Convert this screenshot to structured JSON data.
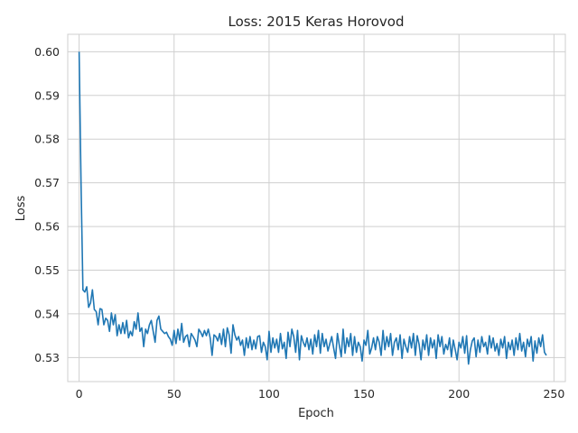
{
  "chart_data": {
    "type": "line",
    "title": "Loss: 2015 Keras Horovod",
    "xlabel": "Epoch",
    "ylabel": "Loss",
    "xlim": [
      -6,
      256
    ],
    "ylim": [
      0.5245,
      0.604
    ],
    "xticks": [
      0,
      50,
      100,
      150,
      200,
      250
    ],
    "yticks": [
      0.53,
      0.54,
      0.55,
      0.56,
      0.57,
      0.58,
      0.59,
      0.6
    ],
    "ytick_labels": [
      "0.53",
      "0.54",
      "0.55",
      "0.56",
      "0.57",
      "0.58",
      "0.59",
      "0.60"
    ],
    "grid": true,
    "legend": "none",
    "series": [
      {
        "color": "#1f77b4",
        "x_start": 0,
        "x_step": 1,
        "values": [
          0.6,
          0.57,
          0.5455,
          0.545,
          0.5462,
          0.5415,
          0.5425,
          0.5455,
          0.541,
          0.5405,
          0.5375,
          0.5412,
          0.541,
          0.5375,
          0.539,
          0.5385,
          0.536,
          0.5402,
          0.5375,
          0.5398,
          0.535,
          0.5375,
          0.5355,
          0.538,
          0.5355,
          0.5385,
          0.5345,
          0.536,
          0.535,
          0.5382,
          0.5365,
          0.5402,
          0.536,
          0.5368,
          0.5325,
          0.5365,
          0.5355,
          0.5375,
          0.5385,
          0.536,
          0.5335,
          0.5385,
          0.5395,
          0.5365,
          0.536,
          0.5355,
          0.5358,
          0.5348,
          0.5342,
          0.5328,
          0.5362,
          0.5332,
          0.5365,
          0.534,
          0.5378,
          0.5335,
          0.5348,
          0.5352,
          0.5325,
          0.5355,
          0.5348,
          0.534,
          0.5325,
          0.5365,
          0.5358,
          0.5348,
          0.5362,
          0.535,
          0.5365,
          0.5345,
          0.5305,
          0.5352,
          0.5348,
          0.5338,
          0.5355,
          0.533,
          0.5365,
          0.5325,
          0.5368,
          0.5352,
          0.531,
          0.5375,
          0.5352,
          0.534,
          0.5348,
          0.5328,
          0.534,
          0.5305,
          0.5345,
          0.5322,
          0.5348,
          0.5318,
          0.534,
          0.532,
          0.5348,
          0.535,
          0.5312,
          0.5335,
          0.5325,
          0.5295,
          0.536,
          0.5312,
          0.5345,
          0.5322,
          0.5342,
          0.5312,
          0.5355,
          0.532,
          0.5335,
          0.5298,
          0.5358,
          0.5325,
          0.5365,
          0.5348,
          0.5312,
          0.5362,
          0.5295,
          0.535,
          0.5335,
          0.5325,
          0.5345,
          0.5318,
          0.5342,
          0.5308,
          0.5352,
          0.5325,
          0.5362,
          0.531,
          0.5355,
          0.5325,
          0.5342,
          0.5315,
          0.5332,
          0.5348,
          0.5322,
          0.5298,
          0.5355,
          0.5328,
          0.5302,
          0.5365,
          0.531,
          0.5345,
          0.5325,
          0.5355,
          0.5305,
          0.5348,
          0.5312,
          0.5335,
          0.5325,
          0.5292,
          0.534,
          0.5328,
          0.5362,
          0.5308,
          0.5322,
          0.5345,
          0.5318,
          0.5348,
          0.5335,
          0.5305,
          0.5362,
          0.5318,
          0.5348,
          0.5325,
          0.5355,
          0.5305,
          0.5335,
          0.5345,
          0.5318,
          0.5352,
          0.5298,
          0.5342,
          0.5325,
          0.5312,
          0.5348,
          0.5322,
          0.5355,
          0.5305,
          0.535,
          0.533,
          0.5295,
          0.534,
          0.5318,
          0.5352,
          0.5305,
          0.5345,
          0.5322,
          0.534,
          0.5298,
          0.5352,
          0.5325,
          0.5348,
          0.5308,
          0.533,
          0.5318,
          0.5345,
          0.5302,
          0.534,
          0.5318,
          0.5295,
          0.5335,
          0.5322,
          0.5348,
          0.531,
          0.535,
          0.5285,
          0.5318,
          0.5338,
          0.5345,
          0.5302,
          0.534,
          0.5312,
          0.5348,
          0.5325,
          0.5335,
          0.5308,
          0.535,
          0.5322,
          0.5345,
          0.5315,
          0.5332,
          0.5305,
          0.5342,
          0.5322,
          0.5348,
          0.5298,
          0.5335,
          0.5318,
          0.534,
          0.5305,
          0.5345,
          0.5318,
          0.5355,
          0.5315,
          0.5335,
          0.5302,
          0.5342,
          0.5325,
          0.5348,
          0.5292,
          0.5338,
          0.531,
          0.5345,
          0.5325,
          0.5352,
          0.5312,
          0.5305
        ]
      }
    ]
  }
}
